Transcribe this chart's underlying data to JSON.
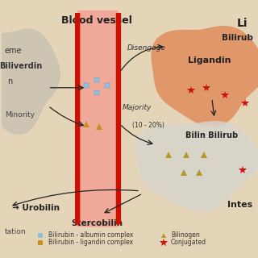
{
  "bg_color": "#e5d5b8",
  "title_blood": "Blood vessel",
  "title_liver": "Li",
  "spleen_blob_color": "#c8c0b0",
  "vessel_fill_color": "#f0a898",
  "vessel_border_color": "#cc1100",
  "liver_blob_color": "#e09060",
  "intestine_blob_color": "#d8d4cc",
  "arrow_color": "#222222",
  "label_disengage": "Disengage",
  "label_majority": "Majority",
  "label_percent": "(10 - 20%)",
  "albumin_complex_color": "#90c0e0",
  "ligandin_complex_color": "#c89020",
  "bilinogen_color": "#b0982a",
  "conjugated_color": "#cc1515",
  "legend_items": [
    {
      "label": "Bilirubin - albumin complex",
      "color": "#90c0e0",
      "marker": "s"
    },
    {
      "label": "Bilirubin - ligandin complex",
      "color": "#c89020",
      "marker": "s"
    },
    {
      "label": "Bilinogen",
      "color": "#b0982a",
      "marker": "^"
    },
    {
      "label": "Conjugated",
      "color": "#cc1515",
      "marker": "*"
    }
  ],
  "urobilin_text": "→ Urobilin",
  "stercobilin_text": "Stercobilin",
  "precipitation_text": "tation"
}
